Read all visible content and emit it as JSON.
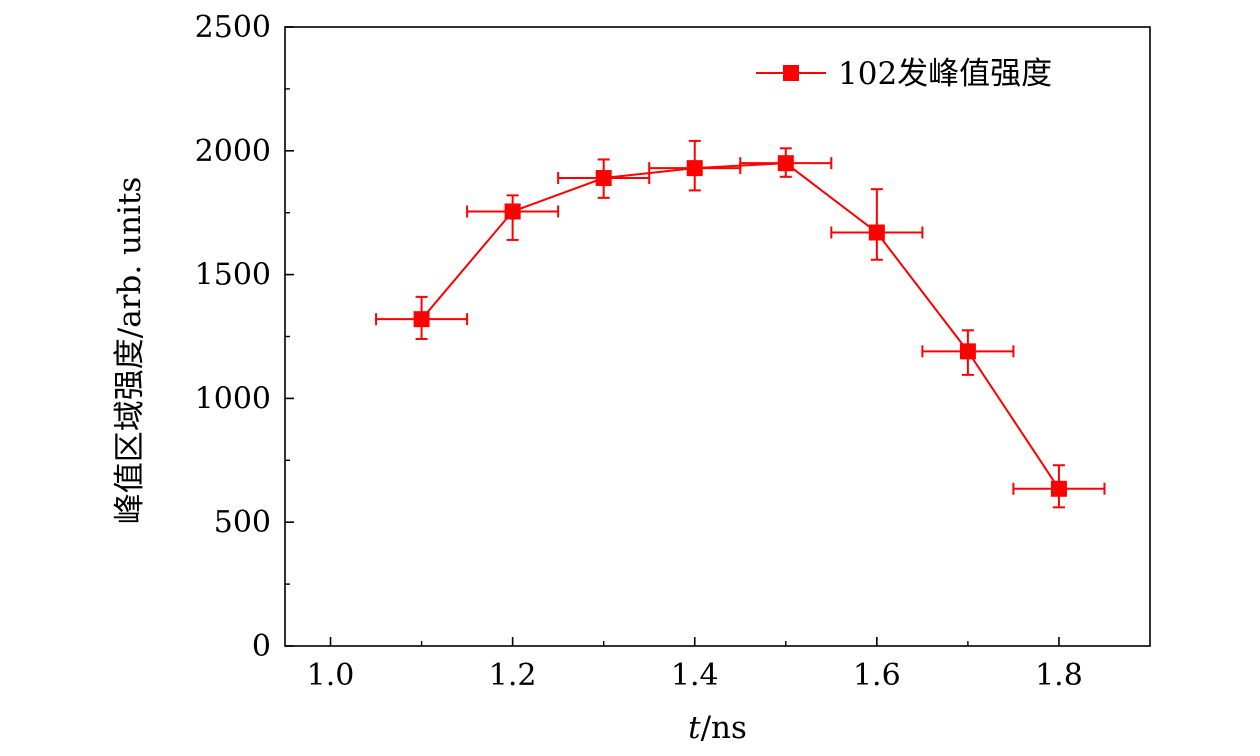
{
  "chart_data": {
    "type": "line",
    "x": [
      1.1,
      1.2,
      1.3,
      1.4,
      1.5,
      1.6,
      1.7,
      1.8
    ],
    "series": [
      {
        "name": "102发峰值强度",
        "color": "#ff0000",
        "marker": "square",
        "values": [
          1320,
          1755,
          1890,
          1930,
          1950,
          1670,
          1190,
          635
        ],
        "y_err_low": [
          80,
          115,
          80,
          90,
          55,
          110,
          95,
          75
        ],
        "y_err_high": [
          90,
          65,
          75,
          110,
          60,
          175,
          85,
          95
        ],
        "x_err": [
          0.05,
          0.05,
          0.05,
          0.05,
          0.05,
          0.05,
          0.05,
          0.05
        ]
      }
    ],
    "xlabel_italic": "t",
    "xlabel_rest": "/ns",
    "ylabel": "峰值区域强度/arb. units",
    "xlim": [
      0.95,
      1.9
    ],
    "ylim": [
      0,
      2500
    ],
    "xticks": [
      "1.0",
      "1.2",
      "1.4",
      "1.6",
      "1.8"
    ],
    "xtick_values": [
      1.0,
      1.2,
      1.4,
      1.6,
      1.8
    ],
    "yticks": [
      "0",
      "500",
      "1000",
      "1500",
      "2000",
      "2500"
    ],
    "ytick_values": [
      0,
      500,
      1000,
      1500,
      2000,
      2500
    ],
    "grid": false,
    "legend_position": "top-right"
  }
}
